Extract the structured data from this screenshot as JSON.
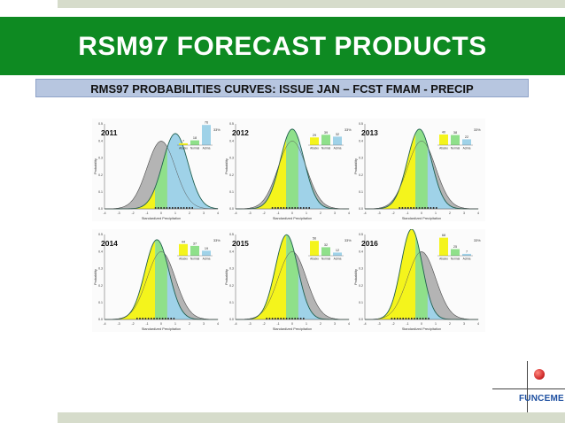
{
  "header": {
    "title": "RSM97 FORECAST PRODUCTS",
    "subtitle": "RMS97 PROBABILITIES CURVES: ISSUE JAN – FCST FMAM - PRECIP"
  },
  "colors": {
    "header_green": "#0e8a22",
    "subtitle_blue": "#b7c6e0",
    "below_yellow": "#f4f41c",
    "normal_green": "#8fe08a",
    "above_blue": "#9fd2e8",
    "climatology_gray": "#b4b4b4",
    "logo_blue": "#1d4fa0",
    "logo_red": "#d32f2f"
  },
  "chart_common": {
    "xlabel": "Standardized Precipitation",
    "ylabel": "Probability",
    "xlim": [
      -4,
      4
    ],
    "xticks": [
      "-4",
      "-3",
      "-2",
      "-1",
      "0",
      "1",
      "2",
      "3",
      "4"
    ],
    "ylim": [
      0,
      0.5
    ],
    "yticks": [
      "0.0",
      "0.1",
      "0.2",
      "0.3",
      "0.4",
      "0.5"
    ],
    "bar_categories": [
      "Abaixo",
      "Normal",
      "Acima"
    ]
  },
  "chart_data": [
    {
      "type": "area",
      "year": "2011",
      "forecast_mean": 1.0,
      "forecast_sd": 0.9,
      "clim_mean": 0.0,
      "clim_sd": 1.0,
      "bars": [
        7,
        18,
        76
      ],
      "bar_labels": [
        "7",
        "18",
        "76"
      ],
      "pct_label": "33%"
    },
    {
      "type": "area",
      "year": "2012",
      "forecast_mean": 0.0,
      "forecast_sd": 0.85,
      "clim_mean": 0.0,
      "clim_sd": 1.0,
      "bars": [
        29,
        39,
        32
      ],
      "bar_labels": [
        "29",
        "39",
        "32"
      ],
      "pct_label": "33%"
    },
    {
      "type": "area",
      "year": "2013",
      "forecast_mean": -0.15,
      "forecast_sd": 0.85,
      "clim_mean": 0.0,
      "clim_sd": 1.0,
      "bars": [
        40,
        38,
        22
      ],
      "bar_labels": [
        "40",
        "38",
        "22"
      ],
      "pct_label": "33%"
    },
    {
      "type": "area",
      "year": "2014",
      "forecast_mean": -0.3,
      "forecast_sd": 0.85,
      "clim_mean": 0.0,
      "clim_sd": 1.0,
      "bars": [
        44,
        37,
        19
      ],
      "bar_labels": [
        "44",
        "37",
        "19"
      ],
      "pct_label": "33%"
    },
    {
      "type": "area",
      "year": "2015",
      "forecast_mean": -0.4,
      "forecast_sd": 0.8,
      "clim_mean": 0.0,
      "clim_sd": 1.0,
      "bars": [
        56,
        32,
        12
      ],
      "bar_labels": [
        "56",
        "32",
        "12"
      ],
      "pct_label": "33%"
    },
    {
      "type": "area",
      "year": "2016",
      "forecast_mean": -0.7,
      "forecast_sd": 0.75,
      "clim_mean": 0.0,
      "clim_sd": 1.0,
      "bars": [
        68,
        25,
        7
      ],
      "bar_labels": [
        "68",
        "25",
        "7"
      ],
      "pct_label": "33%"
    }
  ],
  "logo": {
    "name": "FUNCEME"
  }
}
